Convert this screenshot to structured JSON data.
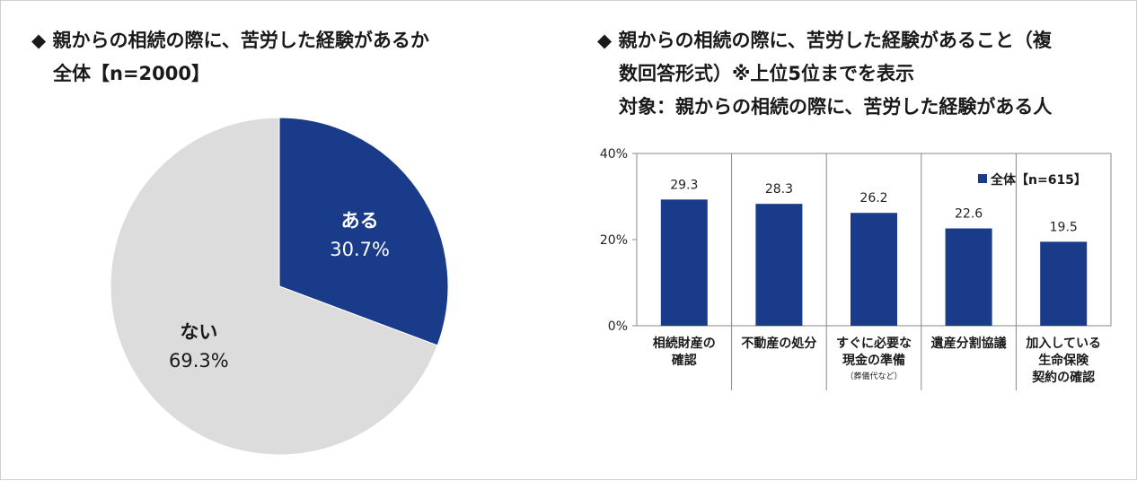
{
  "pie_panel": {
    "title_line1": "◆ 親からの相続の際に、苦労した経験があるか",
    "title_line2": "全体【n=2000】"
  },
  "bar_panel": {
    "title_line1": "◆ 親からの相続の際に、苦労した経験があること（複",
    "title_line2": "数回答形式）※上位5位までを表示",
    "title_line3": "対象：親からの相続の際に、苦労した経験がある人"
  },
  "colors": {
    "navy": "#1a3a8a",
    "light_gray": "#dcdcdc",
    "grid": "#888888"
  },
  "chart_data": [
    {
      "type": "pie",
      "title": "親からの相続の際に、苦労した経験があるか 全体【n=2000】",
      "slices": [
        {
          "label": "ある",
          "value": 30.7,
          "display": "30.7%",
          "color": "#1a3a8a",
          "label_color": "#ffffff"
        },
        {
          "label": "ない",
          "value": 69.3,
          "display": "69.3%",
          "color": "#dcdcdc",
          "label_color": "#1a1a1a"
        }
      ]
    },
    {
      "type": "bar",
      "title": "親からの相続の際に、苦労した経験があること（複数回答形式）※上位5位までを表示",
      "categories": [
        [
          "相続財産の",
          "確認"
        ],
        [
          "不動産の処分"
        ],
        [
          "すぐに必要な",
          "現金の準備",
          "（葬儀代など）"
        ],
        [
          "遺産分割協議"
        ],
        [
          "加入している",
          "生命保険",
          "契約の確認"
        ]
      ],
      "series": [
        {
          "name": "全体【n=615】",
          "values": [
            29.3,
            28.3,
            26.2,
            22.6,
            19.5
          ],
          "color": "#1a3a8a"
        }
      ],
      "value_labels": [
        "29.3",
        "28.3",
        "26.2",
        "22.6",
        "19.5"
      ],
      "ylim": [
        0,
        40
      ],
      "yticks": [
        "0%",
        "20%",
        "40%"
      ],
      "legend_label": "全体【n=615】"
    }
  ]
}
